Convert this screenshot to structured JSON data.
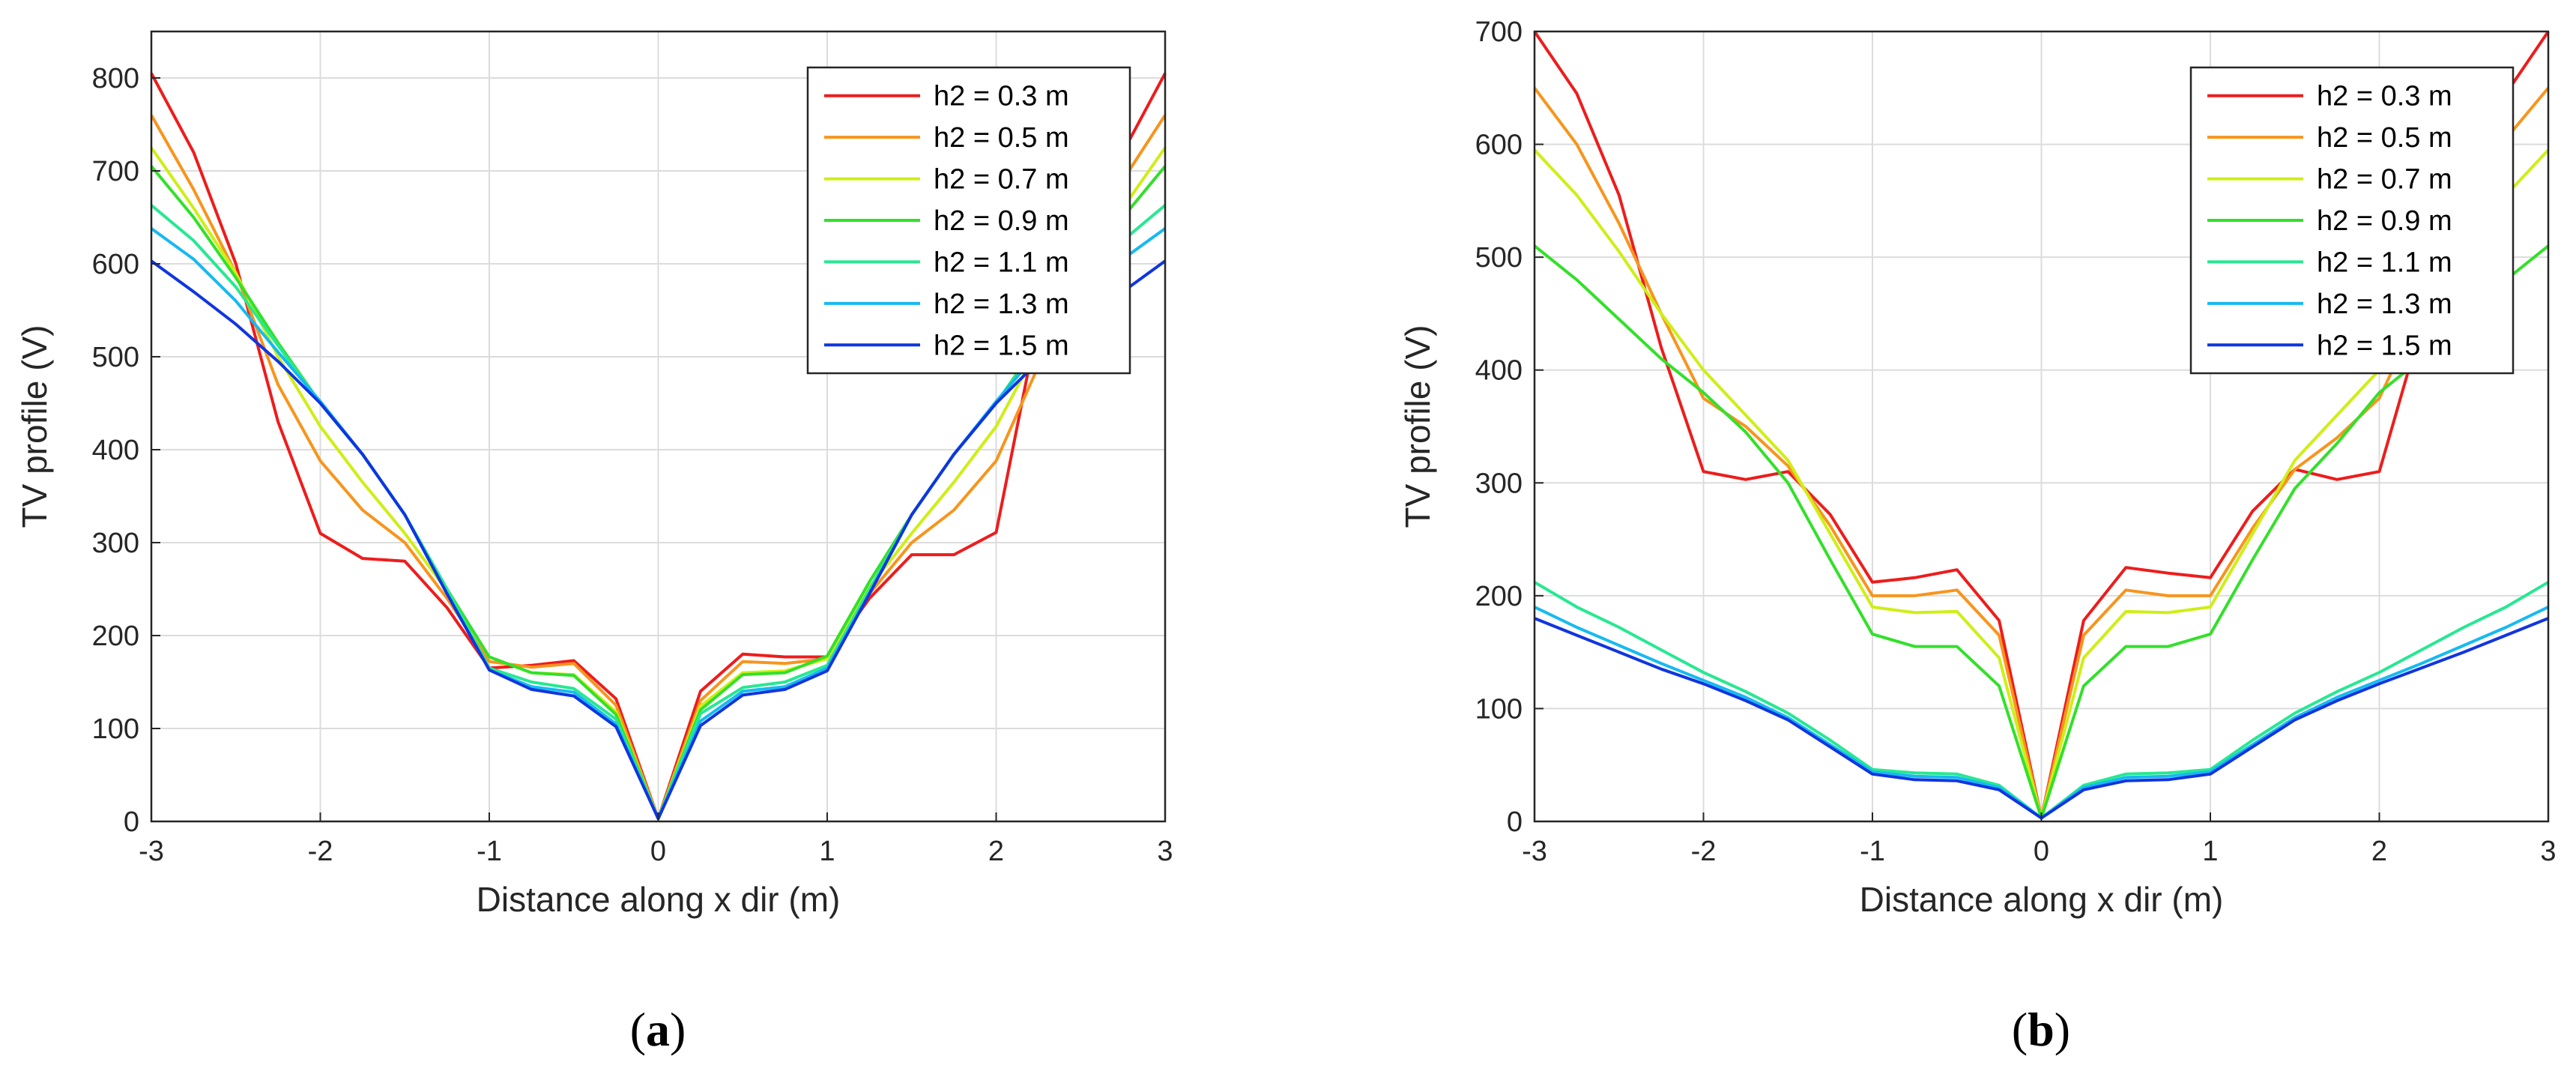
{
  "chart_data": [
    {
      "type": "line",
      "id": "a",
      "caption_open": "(",
      "caption_letter": "a",
      "caption_close": ")",
      "xlabel": "Distance along x dir (m)",
      "ylabel": "TV profile (V)",
      "xlim": [
        -3,
        3
      ],
      "ylim": [
        0,
        850
      ],
      "xticks": [
        -3,
        -2,
        -1,
        0,
        1,
        2,
        3
      ],
      "yticks": [
        0,
        100,
        200,
        300,
        400,
        500,
        600,
        700,
        800
      ],
      "grid": true,
      "legend_position": "top-right",
      "x": [
        -3,
        -2.75,
        -2.5,
        -2.25,
        -2,
        -1.75,
        -1.5,
        -1.25,
        -1,
        -0.75,
        -0.5,
        -0.25,
        0,
        0.25,
        0.5,
        0.75,
        1,
        1.25,
        1.5,
        1.75,
        2,
        2.25,
        2.5,
        2.75,
        3
      ],
      "series": [
        {
          "name": "h2 = 0.3 m",
          "color": "#ee1c1c",
          "values": [
            805,
            720,
            600,
            430,
            310,
            283,
            280,
            230,
            165,
            168,
            173,
            132,
            3,
            140,
            180,
            177,
            177,
            240,
            287,
            287,
            311,
            540,
            660,
            720,
            805
          ]
        },
        {
          "name": "h2 = 0.5 m",
          "color": "#f7951d",
          "values": [
            760,
            680,
            590,
            470,
            388,
            335,
            300,
            240,
            172,
            166,
            170,
            125,
            3,
            130,
            172,
            170,
            175,
            245,
            300,
            335,
            388,
            490,
            600,
            690,
            760
          ]
        },
        {
          "name": "h2 = 0.7 m",
          "color": "#cfee16",
          "values": [
            725,
            660,
            590,
            500,
            425,
            365,
            310,
            248,
            177,
            160,
            158,
            118,
            3,
            124,
            160,
            162,
            175,
            252,
            310,
            365,
            425,
            510,
            600,
            660,
            725
          ]
        },
        {
          "name": "h2 = 0.9 m",
          "color": "#33e02a",
          "values": [
            705,
            650,
            585,
            515,
            450,
            395,
            330,
            250,
            177,
            160,
            157,
            115,
            3,
            120,
            158,
            160,
            178,
            258,
            330,
            395,
            450,
            515,
            585,
            650,
            705
          ]
        },
        {
          "name": "h2 = 1.1 m",
          "color": "#27e892",
          "values": [
            663,
            625,
            575,
            512,
            450,
            395,
            330,
            250,
            165,
            150,
            143,
            110,
            3,
            116,
            144,
            150,
            168,
            250,
            330,
            395,
            450,
            512,
            575,
            625,
            663
          ]
        },
        {
          "name": "h2 = 1.3 m",
          "color": "#16baf0",
          "values": [
            638,
            605,
            560,
            505,
            452,
            395,
            330,
            245,
            163,
            145,
            139,
            105,
            3,
            108,
            140,
            145,
            165,
            245,
            330,
            395,
            452,
            505,
            560,
            605,
            638
          ]
        },
        {
          "name": "h2 = 1.5 m",
          "color": "#1035e0",
          "values": [
            603,
            570,
            535,
            495,
            450,
            395,
            330,
            245,
            163,
            142,
            135,
            102,
            3,
            103,
            136,
            142,
            162,
            245,
            330,
            395,
            450,
            495,
            535,
            570,
            603
          ]
        }
      ]
    },
    {
      "type": "line",
      "id": "b",
      "caption_open": "(",
      "caption_letter": "b",
      "caption_close": ")",
      "xlabel": "Distance along x dir (m)",
      "ylabel": "TV profile (V)",
      "xlim": [
        -3,
        3
      ],
      "ylim": [
        0,
        700
      ],
      "xticks": [
        -3,
        -2,
        -1,
        0,
        1,
        2,
        3
      ],
      "yticks": [
        0,
        100,
        200,
        300,
        400,
        500,
        600,
        700
      ],
      "grid": true,
      "legend_position": "top-right",
      "x": [
        -3,
        -2.75,
        -2.5,
        -2.25,
        -2,
        -1.75,
        -1.5,
        -1.25,
        -1,
        -0.75,
        -0.5,
        -0.25,
        0,
        0.25,
        0.5,
        0.75,
        1,
        1.25,
        1.5,
        1.75,
        2,
        2.25,
        2.5,
        2.75,
        3
      ],
      "series": [
        {
          "name": "h2 = 0.3 m",
          "color": "#ee1c1c",
          "values": [
            700,
            645,
            555,
            420,
            310,
            303,
            310,
            272,
            212,
            216,
            223,
            178,
            3,
            178,
            225,
            220,
            216,
            275,
            312,
            303,
            310,
            440,
            560,
            645,
            700
          ]
        },
        {
          "name": "h2 = 0.5 m",
          "color": "#f7951d",
          "values": [
            650,
            600,
            530,
            450,
            375,
            350,
            315,
            262,
            200,
            200,
            205,
            165,
            3,
            165,
            205,
            200,
            200,
            260,
            312,
            340,
            375,
            455,
            535,
            605,
            650
          ]
        },
        {
          "name": "h2 = 0.7 m",
          "color": "#cfee16",
          "values": [
            595,
            555,
            505,
            450,
            400,
            360,
            320,
            255,
            190,
            185,
            186,
            145,
            3,
            145,
            186,
            185,
            190,
            255,
            320,
            360,
            400,
            455,
            505,
            555,
            595
          ]
        },
        {
          "name": "h2 = 0.9 m",
          "color": "#33e02a",
          "values": [
            510,
            480,
            445,
            410,
            380,
            345,
            300,
            232,
            166,
            155,
            155,
            120,
            3,
            120,
            155,
            155,
            166,
            232,
            295,
            335,
            380,
            410,
            445,
            480,
            510
          ]
        },
        {
          "name": "h2 = 1.1 m",
          "color": "#27e892",
          "values": [
            212,
            190,
            172,
            152,
            132,
            115,
            96,
            72,
            46,
            43,
            42,
            32,
            3,
            32,
            42,
            43,
            46,
            72,
            96,
            115,
            132,
            152,
            172,
            190,
            212
          ]
        },
        {
          "name": "h2 = 1.3 m",
          "color": "#16baf0",
          "values": [
            190,
            172,
            156,
            140,
            125,
            110,
            92,
            68,
            44,
            40,
            39,
            30,
            3,
            30,
            39,
            40,
            44,
            68,
            92,
            110,
            125,
            140,
            156,
            172,
            190
          ]
        },
        {
          "name": "h2 = 1.5 m",
          "color": "#1035e0",
          "values": [
            180,
            165,
            150,
            135,
            122,
            107,
            90,
            66,
            42,
            37,
            36,
            28,
            3,
            28,
            36,
            37,
            42,
            66,
            90,
            107,
            122,
            136,
            150,
            165,
            180
          ]
        }
      ]
    }
  ]
}
